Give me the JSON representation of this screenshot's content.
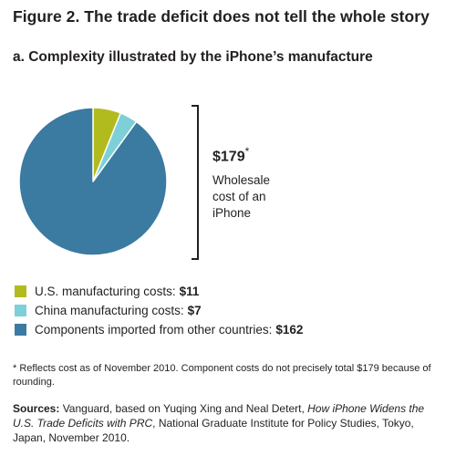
{
  "title": "Figure 2. The trade deficit does not tell the whole story",
  "subtitle": "a. Complexity illustrated by the iPhone’s manufacture",
  "chart_data": {
    "type": "pie",
    "title": "Figure 2. The trade deficit does not tell the whole story",
    "subtitle": "a. Complexity illustrated by the iPhone’s manufacture",
    "total_label": "$179",
    "total_marker": "*",
    "total_caption": "Wholesale cost of an iPhone",
    "start_angle_deg": 0,
    "direction": "clockwise",
    "legend_position": "bottom-left",
    "slices": [
      {
        "label": "U.S. manufacturing costs:",
        "value_label": "$11",
        "value": 11,
        "color": "#b2bb1e"
      },
      {
        "label": "China manufacturing costs:",
        "value_label": "$7",
        "value": 7,
        "color": "#7dd0d8"
      },
      {
        "label": "Components imported from other countries:",
        "value_label": "$162",
        "value": 162,
        "color": "#3b7aa1"
      }
    ]
  },
  "footnote": "* Reflects cost as of November 2010. Component costs do not precisely total $179 because of rounding.",
  "sources": {
    "label": "Sources:",
    "text_1": " Vanguard, based on Yuqing Xing and Neal Detert, ",
    "italic": "How iPhone Widens the U.S. Trade Deficits with PRC",
    "text_2": ", National Graduate Institute for Policy Studies, Tokyo, Japan, November 2010."
  }
}
